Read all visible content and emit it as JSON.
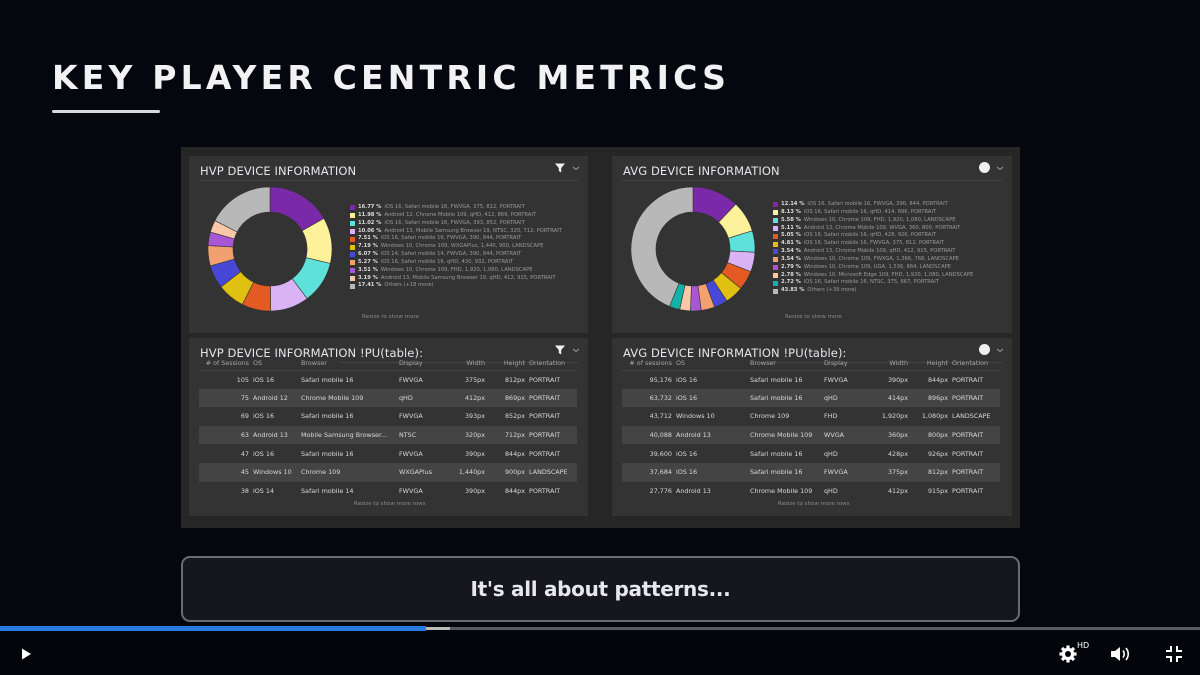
{
  "slide": {
    "title": "KEY PLAYER CENTRIC METRICS",
    "caption": "It's all about patterns..."
  },
  "colors": {
    "background": "#05070f",
    "dashboard_bg": "#262626",
    "card_bg": "#333333",
    "progress_played": "#2a7ae4",
    "palette": [
      "#7a2aa8",
      "#fdf29a",
      "#5ee0db",
      "#d9b3f5",
      "#e35b22",
      "#e0c010",
      "#4848d8",
      "#f2a070",
      "#a855d6",
      "#f9c8a8",
      "#12b2a8",
      "#b8b8b8"
    ]
  },
  "hvp_donut": {
    "title": "HVP DEVICE INFORMATION",
    "icons": [
      "filter-icon",
      "chevron-down-icon"
    ],
    "resize_hint": "Resize to show more",
    "legend": [
      {
        "pct": "16.77 %",
        "label": "iOS 16, Safari mobile 16, FWVGA, 375, 812, PORTRAIT",
        "color": "#7a2aa8"
      },
      {
        "pct": "11.98 %",
        "label": "Android 12, Chrome Mobile 109, qHD, 412, 869, PORTRAIT",
        "color": "#fdf29a"
      },
      {
        "pct": "11.02 %",
        "label": "iOS 16, Safari mobile 16, FWVGA, 393, 852, PORTRAIT",
        "color": "#5ee0db"
      },
      {
        "pct": "10.06 %",
        "label": "Android 13, Mobile Samsung Browser 19, NTSC, 320, 712, PORTRAIT",
        "color": "#d9b3f5"
      },
      {
        "pct": "7.51 %",
        "label": "iOS 16, Safari mobile 16, FWVGA, 390, 844, PORTRAIT",
        "color": "#e35b22"
      },
      {
        "pct": "7.19 %",
        "label": "Windows 10, Chrome 109, WXGAPlus, 1,440, 900, LANDSCAPE",
        "color": "#e0c010"
      },
      {
        "pct": "6.07 %",
        "label": "iOS 14, Safari mobile 14, FWVGA, 390, 844, PORTRAIT",
        "color": "#4848d8"
      },
      {
        "pct": "5.27 %",
        "label": "iOS 16, Safari mobile 16, qHD, 430, 932, PORTRAIT",
        "color": "#f2a070"
      },
      {
        "pct": "3.51 %",
        "label": "Windows 10, Chrome 109, FHD, 1,920, 1,080, LANDSCAPE",
        "color": "#a855d6"
      },
      {
        "pct": "3.19 %",
        "label": "Android 13, Mobile Samsung Browser 19, qHD, 412, 915, PORTRAIT",
        "color": "#f9c8a8"
      },
      {
        "pct": "17.41 %",
        "label": "Others (+18 more)",
        "color": "#b8b8b8"
      }
    ]
  },
  "avg_donut": {
    "title": "AVG DEVICE INFORMATION",
    "icons": [
      "focus-icon",
      "chevron-down-icon"
    ],
    "resize_hint": "Resize to show more",
    "legend": [
      {
        "pct": "12.14 %",
        "label": "iOS 16, Safari mobile 16, FWVGA, 390, 844, PORTRAIT",
        "color": "#7a2aa8"
      },
      {
        "pct": "8.13 %",
        "label": "iOS 16, Safari mobile 16, qHD, 414, 896, PORTRAIT",
        "color": "#fdf29a"
      },
      {
        "pct": "5.58 %",
        "label": "Windows 10, Chrome 109, FHD, 1,920, 1,080, LANDSCAPE",
        "color": "#5ee0db"
      },
      {
        "pct": "5.11 %",
        "label": "Android 13, Chrome Mobile 109, WVGA, 360, 800, PORTRAIT",
        "color": "#d9b3f5"
      },
      {
        "pct": "5.05 %",
        "label": "iOS 16, Safari mobile 16, qHD, 428, 926, PORTRAIT",
        "color": "#e35b22"
      },
      {
        "pct": "4.81 %",
        "label": "iOS 16, Safari mobile 16, FWVGA, 375, 812, PORTRAIT",
        "color": "#e0c010"
      },
      {
        "pct": "3.54 %",
        "label": "Android 13, Chrome Mobile 109, qHD, 412, 915, PORTRAIT",
        "color": "#4848d8"
      },
      {
        "pct": "3.54 %",
        "label": "Windows 10, Chrome 109, FWXGA, 1,366, 768, LANDSCAPE",
        "color": "#f2a070"
      },
      {
        "pct": "2.79 %",
        "label": "Windows 10, Chrome 109, UGA, 1,536, 864, LANDSCAPE",
        "color": "#a855d6"
      },
      {
        "pct": "2.78 %",
        "label": "Windows 10, Microsoft Edge 109, FHD, 1,920, 1,080, LANDSCAPE",
        "color": "#f9c8a8"
      },
      {
        "pct": "2.72 %",
        "label": "iOS 16, Safari mobile 16, NTSC, 375, 667, PORTRAIT",
        "color": "#12b2a8"
      },
      {
        "pct": "43.83 %",
        "label": "Others (+39 more)",
        "color": "#b8b8b8"
      }
    ]
  },
  "hvp_table": {
    "title": "HVP DEVICE INFORMATION !PU(table):",
    "icons": [
      "filter-icon",
      "chevron-down-icon"
    ],
    "columns": [
      "# of Sessions",
      "OS",
      "Browser",
      "Display",
      "Width",
      "Height",
      "Orientation"
    ],
    "rows": [
      [
        "105",
        "iOS 16",
        "Safari mobile 16",
        "FWVGA",
        "375px",
        "812px",
        "PORTRAIT"
      ],
      [
        "75",
        "Android 12",
        "Chrome Mobile 109",
        "qHD",
        "412px",
        "869px",
        "PORTRAIT"
      ],
      [
        "69",
        "iOS 16",
        "Safari mobile 16",
        "FWVGA",
        "393px",
        "852px",
        "PORTRAIT"
      ],
      [
        "63",
        "Android 13",
        "Mobile Samsung Browser...",
        "NTSC",
        "320px",
        "712px",
        "PORTRAIT"
      ],
      [
        "47",
        "iOS 16",
        "Safari mobile 16",
        "FWVGA",
        "390px",
        "844px",
        "PORTRAIT"
      ],
      [
        "45",
        "Windows 10",
        "Chrome 109",
        "WXGAPlus",
        "1,440px",
        "900px",
        "LANDSCAPE"
      ],
      [
        "38",
        "iOS 14",
        "Safari mobile 14",
        "FWVGA",
        "390px",
        "844px",
        "PORTRAIT"
      ]
    ],
    "resize_hint": "Resize to show more rows"
  },
  "avg_table": {
    "title": "AVG DEVICE INFORMATION !PU(table):",
    "icons": [
      "focus-icon",
      "chevron-down-icon"
    ],
    "columns": [
      "# of sessions",
      "OS",
      "Browser",
      "Display",
      "Width",
      "Height",
      "Orientation"
    ],
    "rows": [
      [
        "95,176",
        "iOS 16",
        "Safari mobile 16",
        "FWVGA",
        "390px",
        "844px",
        "PORTRAIT"
      ],
      [
        "63,732",
        "iOS 16",
        "Safari mobile 16",
        "qHD",
        "414px",
        "896px",
        "PORTRAIT"
      ],
      [
        "43,712",
        "Windows 10",
        "Chrome 109",
        "FHD",
        "1,920px",
        "1,080px",
        "LANDSCAPE"
      ],
      [
        "40,088",
        "Android 13",
        "Chrome Mobile 109",
        "WVGA",
        "360px",
        "800px",
        "PORTRAIT"
      ],
      [
        "39,600",
        "iOS 16",
        "Safari mobile 16",
        "qHD",
        "428px",
        "926px",
        "PORTRAIT"
      ],
      [
        "37,684",
        "iOS 16",
        "Safari mobile 16",
        "FWVGA",
        "375px",
        "812px",
        "PORTRAIT"
      ],
      [
        "27,776",
        "Android 13",
        "Chrome Mobile 109",
        "qHD",
        "412px",
        "915px",
        "PORTRAIT"
      ]
    ],
    "resize_hint": "Resize to show more rows"
  },
  "player": {
    "progress_played_pct": 35.5,
    "progress_buffered_pct": 37.5,
    "hd_badge": "HD",
    "controls": [
      "play-icon",
      "settings-icon",
      "volume-icon",
      "exit-fullscreen-icon"
    ]
  }
}
